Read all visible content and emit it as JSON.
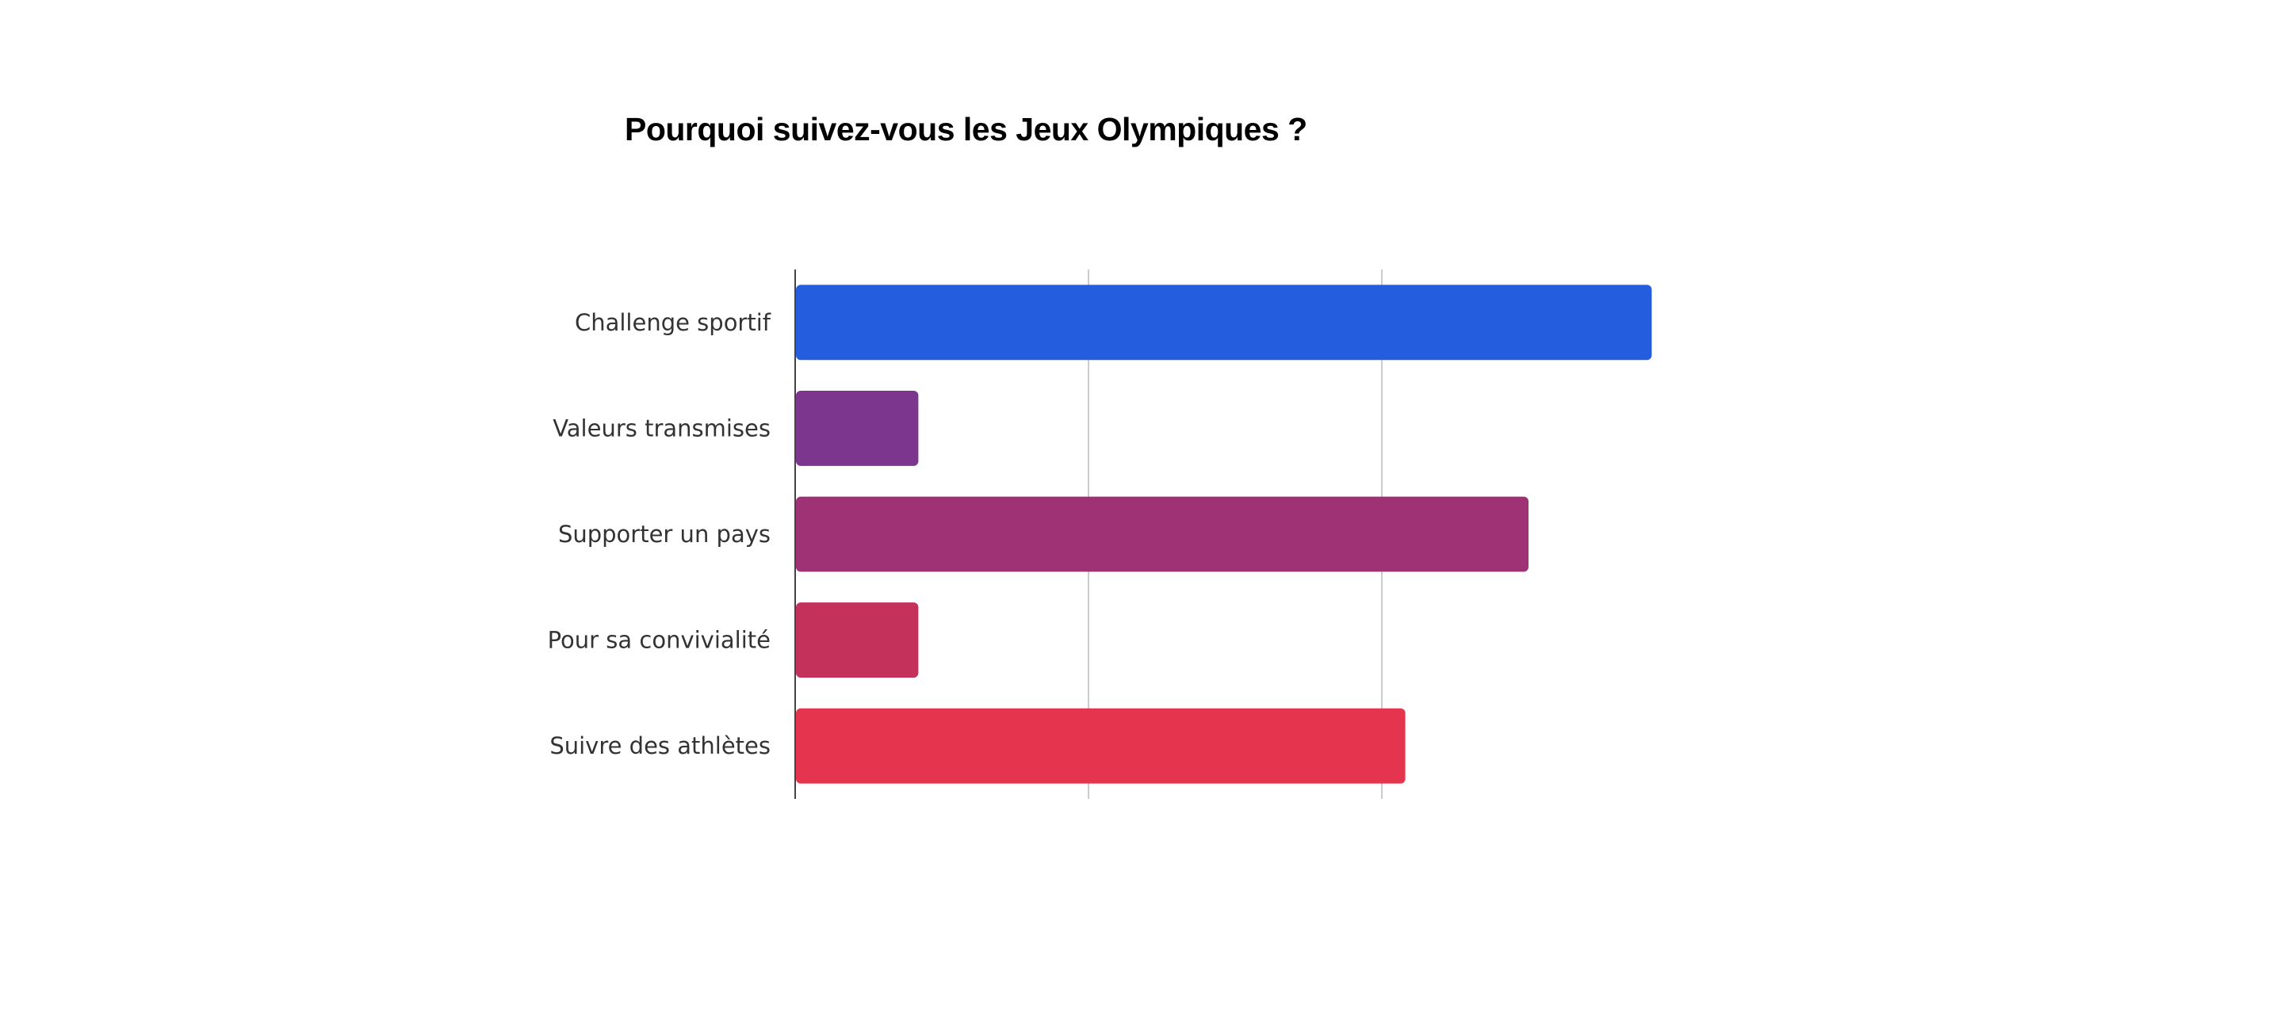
{
  "chart_data": {
    "type": "bar",
    "orientation": "horizontal",
    "title": "Pourquoi suivez-vous les Jeux Olympiques ?",
    "categories": [
      "Challenge sportif",
      "Valeurs transmises",
      "Supporter un pays",
      "Pour sa convivialité",
      "Suivre des athlètes"
    ],
    "values": [
      2.92,
      0.42,
      2.5,
      0.42,
      2.08
    ],
    "colors": [
      "#245EDF",
      "#7D368D",
      "#9E3274",
      "#C4325B",
      "#E5344E"
    ],
    "xlim": [
      0,
      3
    ],
    "grid": true,
    "legend": "none"
  }
}
